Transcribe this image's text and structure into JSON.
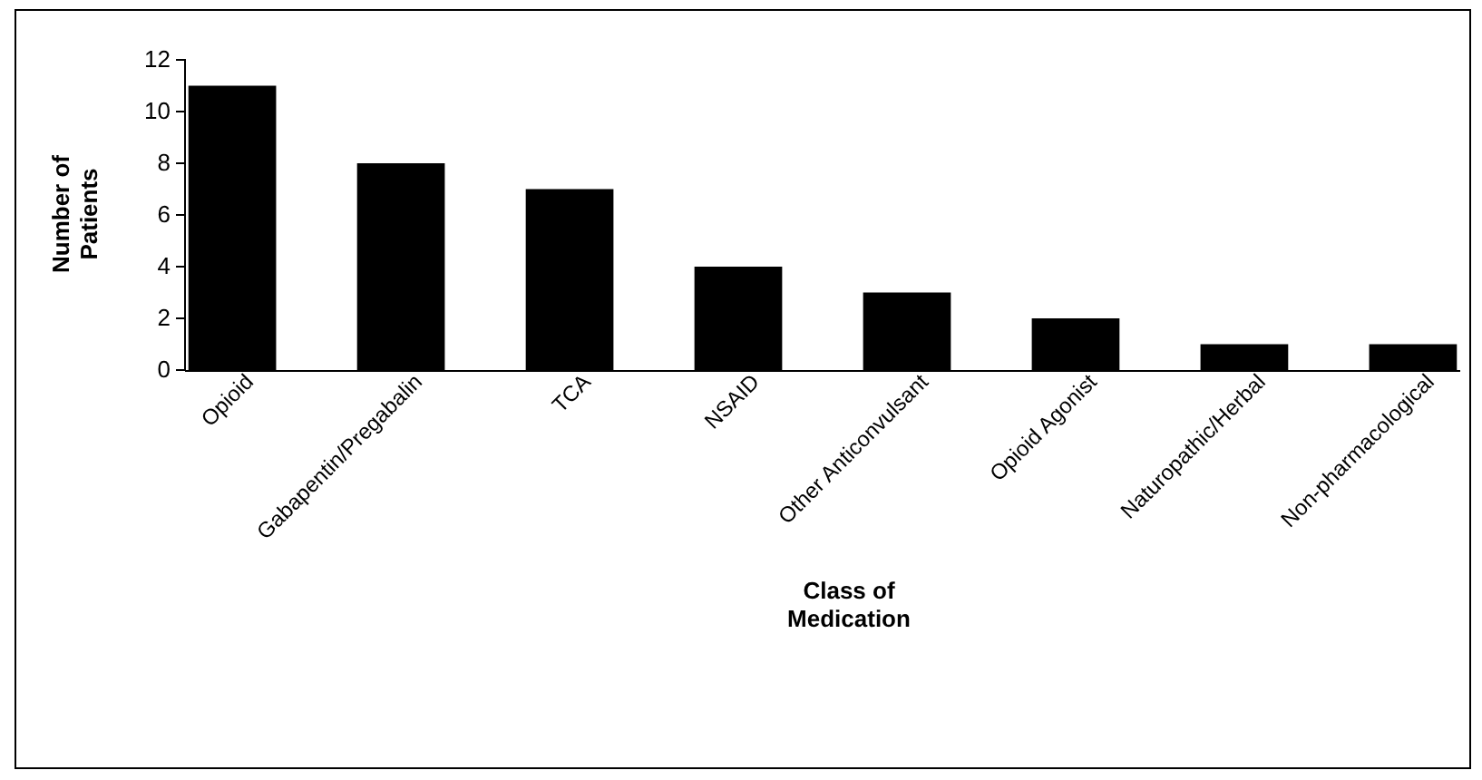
{
  "chart_data": {
    "type": "bar",
    "categories": [
      "Opioid",
      "Gabapentin/Pregabalin",
      "TCA",
      "NSAID",
      "Other Anticonvulsant",
      "Opioid Agonist",
      "Naturopathic/Herbal",
      "Non-pharmacological"
    ],
    "values": [
      11,
      8,
      7,
      4,
      3,
      2,
      1,
      1
    ],
    "color": "#000000",
    "xlabel": "Class of Medication",
    "ylabel": "Number of Patients",
    "ylim": [
      0,
      12
    ],
    "yticks": [
      0,
      2,
      4,
      6,
      8,
      10,
      12
    ],
    "grid": false
  }
}
